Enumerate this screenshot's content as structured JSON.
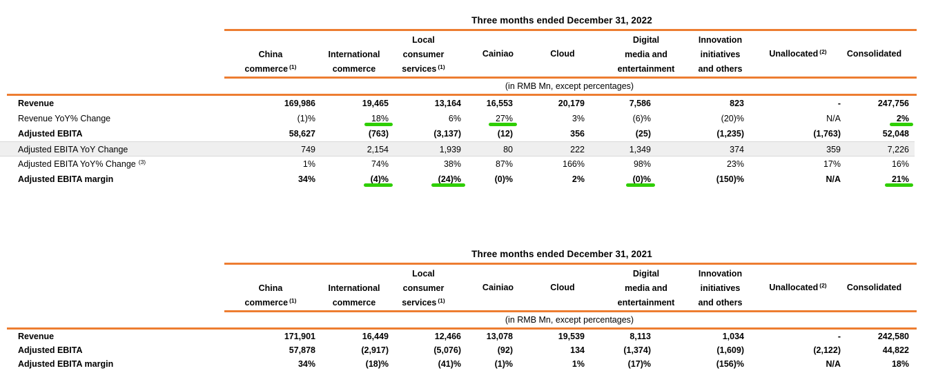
{
  "colors": {
    "orange": "#ED7D31",
    "green": "#2FCE02",
    "stripe_bg": "#EFEFEF",
    "stripe_border": "#D9D9D9"
  },
  "units_note": "(in RMB Mn, except percentages)",
  "columns": [
    {
      "lines": [
        "China",
        "commerce"
      ],
      "sup": "(1)"
    },
    {
      "lines": [
        "International",
        "commerce"
      ]
    },
    {
      "lines": [
        "Local",
        "consumer",
        "services"
      ],
      "sup": "(1)"
    },
    {
      "lines": [
        "Cainiao"
      ]
    },
    {
      "lines": [
        "Cloud"
      ]
    },
    {
      "lines": [
        "Digital",
        "media and",
        "entertainment"
      ]
    },
    {
      "lines": [
        "Innovation",
        "initiatives",
        "and others"
      ]
    },
    {
      "lines": [
        "Unallocated"
      ],
      "sup": "(2)"
    },
    {
      "lines": [
        "Consolidated"
      ]
    }
  ],
  "tables": [
    {
      "title": "Three months ended December 31, 2022",
      "rows": [
        {
          "label": "Revenue",
          "bold": true,
          "values": [
            "169,986",
            "19,465",
            "13,164",
            "16,553",
            "20,179",
            "7,586",
            "823",
            "-",
            "247,756"
          ]
        },
        {
          "label": "Revenue YoY% Change",
          "bold": false,
          "bold_cells": [
            8
          ],
          "underline": [
            1,
            3,
            8
          ],
          "values": [
            "(1)%",
            "18%",
            "6%",
            "27%",
            "3%",
            "(6)%",
            "(20)%",
            "N/A",
            "2%"
          ]
        },
        {
          "label": "Adjusted EBITA",
          "bold": true,
          "values": [
            "58,627",
            "(763)",
            "(3,137)",
            "(12)",
            "356",
            "(25)",
            "(1,235)",
            "(1,763)",
            "52,048"
          ]
        },
        {
          "label": "Adjusted EBITA YoY Change",
          "bold": false,
          "stripe": true,
          "values": [
            "749",
            "2,154",
            "1,939",
            "80",
            "222",
            "1,349",
            "374",
            "359",
            "7,226"
          ]
        },
        {
          "label": "Adjusted EBITA YoY% Change",
          "label_sup": "(3)",
          "bold": false,
          "values": [
            "1%",
            "74%",
            "38%",
            "87%",
            "166%",
            "98%",
            "23%",
            "17%",
            "16%"
          ]
        },
        {
          "label": "Adjusted EBITA margin",
          "bold": true,
          "underline": [
            1,
            2,
            5,
            8
          ],
          "values": [
            "34%",
            "(4)%",
            "(24)%",
            "(0)%",
            "2%",
            "(0)%",
            "(150)%",
            "N/A",
            "21%"
          ]
        }
      ]
    },
    {
      "title": "Three months ended December 31, 2021",
      "rows": [
        {
          "label": "Revenue",
          "bold": true,
          "values": [
            "171,901",
            "16,449",
            "12,466",
            "13,078",
            "19,539",
            "8,113",
            "1,034",
            "-",
            "242,580"
          ]
        },
        {
          "label": "Adjusted EBITA",
          "bold": true,
          "values": [
            "57,878",
            "(2,917)",
            "(5,076)",
            "(92)",
            "134",
            "(1,374)",
            "(1,609)",
            "(2,122)",
            "44,822"
          ]
        },
        {
          "label": "Adjusted EBITA margin",
          "bold": true,
          "values": [
            "34%",
            "(18)%",
            "(41)%",
            "(1)%",
            "1%",
            "(17)%",
            "(156)%",
            "N/A",
            "18%"
          ]
        }
      ]
    }
  ]
}
